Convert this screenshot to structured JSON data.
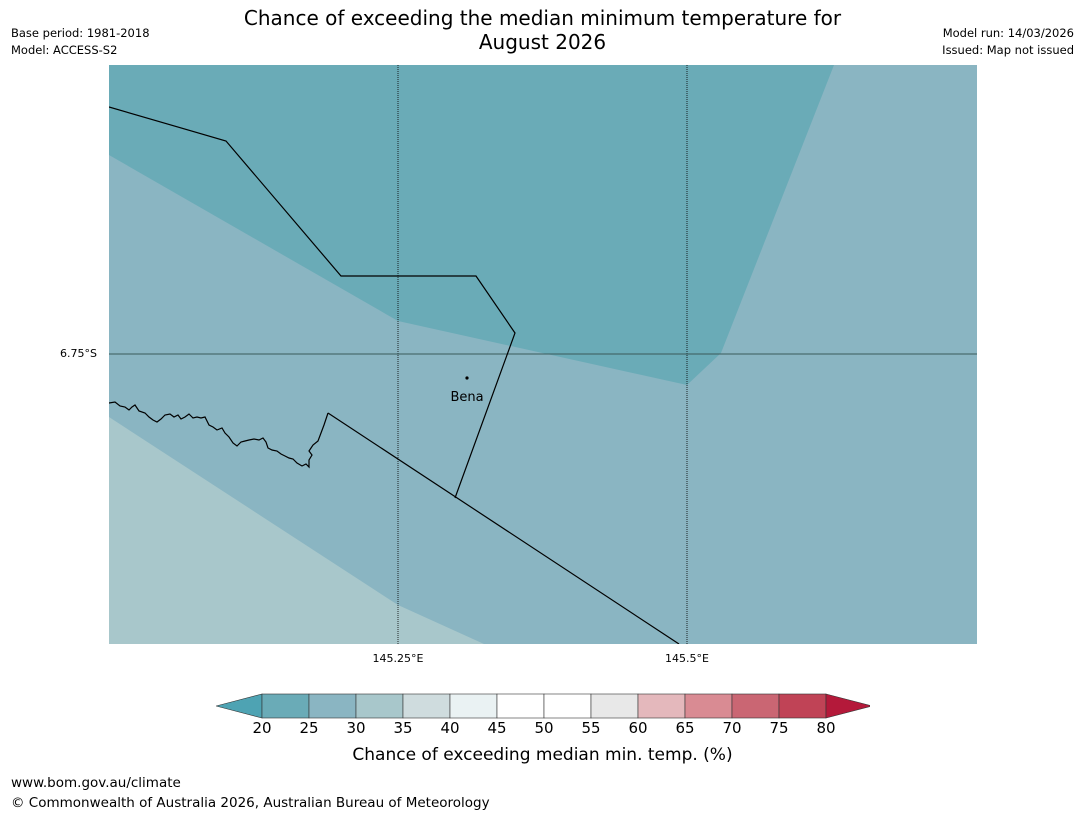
{
  "header": {
    "base_period": "Base period: 1981-2018",
    "model": "Model: ACCESS-S2",
    "title_line1": "Chance of exceeding the median minimum temperature for",
    "title_line2": "August 2026",
    "model_run": "Model run: 14/03/2026",
    "issued": "Issued: Map not issued"
  },
  "map": {
    "lat_label": "6.75°S",
    "lon_labels": [
      "145.25°E",
      "145.5°E"
    ],
    "place_name": "Bena",
    "colors": {
      "band_20_25": "#6aabb7",
      "band_25_30": "#8ab5c2",
      "band_30_35": "#a8c7cb"
    }
  },
  "colorbar": {
    "ticks": [
      "20",
      "25",
      "30",
      "35",
      "40",
      "45",
      "50",
      "55",
      "60",
      "65",
      "70",
      "75",
      "80"
    ],
    "label": "Chance of exceeding median min. temp. (%)",
    "colors": [
      "#4ea3b3",
      "#6aabb7",
      "#8ab5c2",
      "#a8c7cb",
      "#cfdcde",
      "#eaf2f3",
      "#ffffff",
      "#ffffff",
      "#e8e8e8",
      "#e4b8bc",
      "#d98b93",
      "#ca6673",
      "#c04356",
      "#b4193a"
    ]
  },
  "footer": {
    "url": "www.bom.gov.au/climate",
    "copyright": "© Commonwealth of Australia 2026, Australian Bureau of Meteorology"
  }
}
